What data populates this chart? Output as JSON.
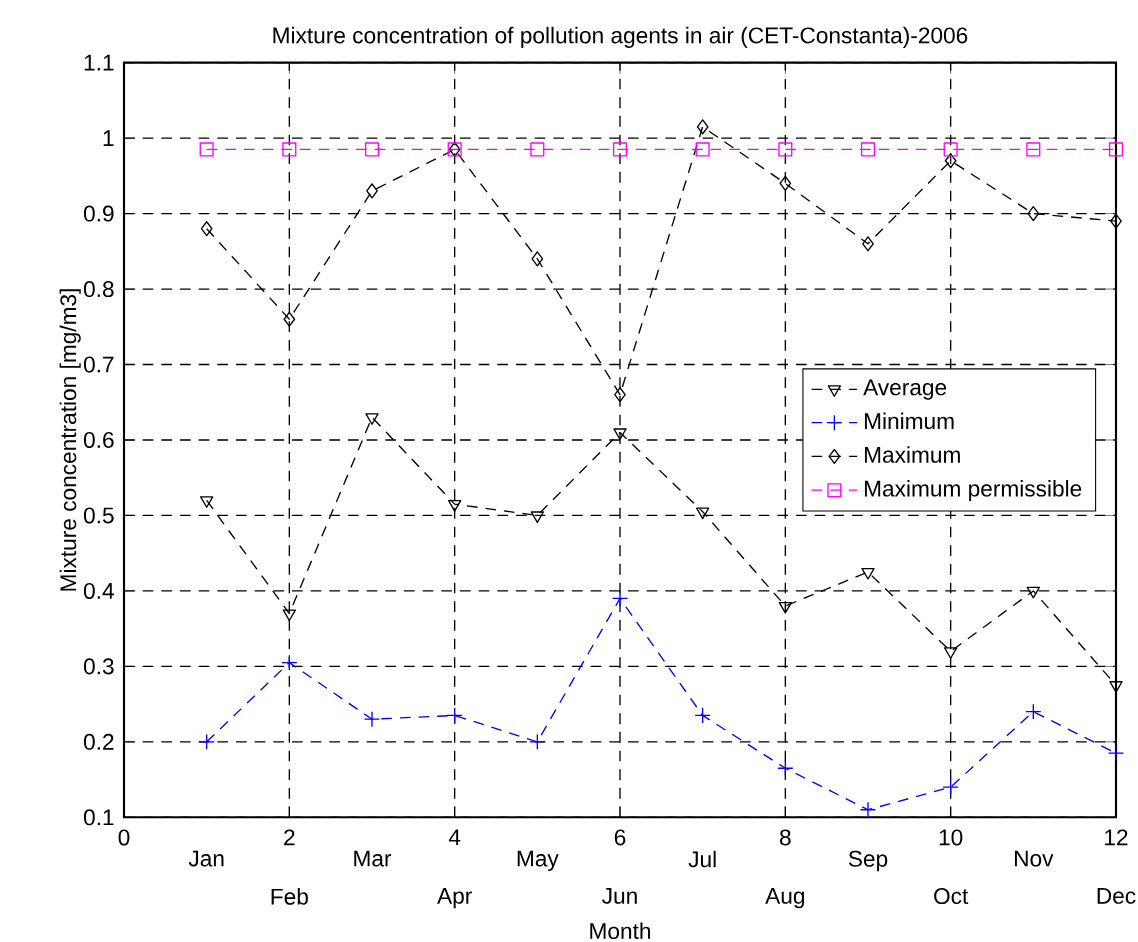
{
  "chart_data": {
    "type": "line",
    "title": "Mixture concentration of pollution agents in air (CET-Constanta)-2006",
    "xlabel": "Month",
    "ylabel": "Mixture concentration [mg/m3]",
    "x": [
      1,
      2,
      3,
      4,
      5,
      6,
      7,
      8,
      9,
      10,
      11,
      12
    ],
    "series": [
      {
        "name": "Average",
        "color": "#000000",
        "marker": "triangle",
        "values": [
          0.52,
          0.37,
          0.63,
          0.515,
          0.5,
          0.61,
          0.505,
          0.38,
          0.425,
          0.32,
          0.4,
          0.275
        ]
      },
      {
        "name": "Minimum",
        "color": "#0000ff",
        "marker": "cross",
        "values": [
          0.2,
          0.305,
          0.23,
          0.235,
          0.2,
          0.39,
          0.235,
          0.165,
          0.11,
          0.14,
          0.24,
          0.185
        ]
      },
      {
        "name": "Maximum",
        "color": "#000000",
        "marker": "diamond",
        "values": [
          0.88,
          0.76,
          0.93,
          0.985,
          0.84,
          0.66,
          1.015,
          0.94,
          0.86,
          0.97,
          0.9,
          0.89
        ]
      },
      {
        "name": "Maximum permissible",
        "color": "#ff00ff",
        "marker": "square",
        "values": [
          0.985,
          0.985,
          0.985,
          0.985,
          0.985,
          0.985,
          0.985,
          0.985,
          0.985,
          0.985,
          0.985,
          0.985
        ]
      }
    ],
    "line_style": "dashed",
    "xlim": [
      0,
      12
    ],
    "xticks": [
      0,
      2,
      4,
      6,
      8,
      10,
      12
    ],
    "ylim": [
      0.1,
      1.1
    ],
    "yticks": [
      0.1,
      0.2,
      0.3,
      0.4,
      0.5,
      0.6,
      0.7,
      0.8,
      0.9,
      1,
      1.1
    ],
    "grid": true,
    "legend": "right",
    "annotations": [
      "Jan",
      "Feb",
      "Mar",
      "Apr",
      "May",
      "Jun",
      "Jul",
      "Aug",
      "Sep",
      "Oct",
      "Nov",
      "Dec"
    ]
  }
}
